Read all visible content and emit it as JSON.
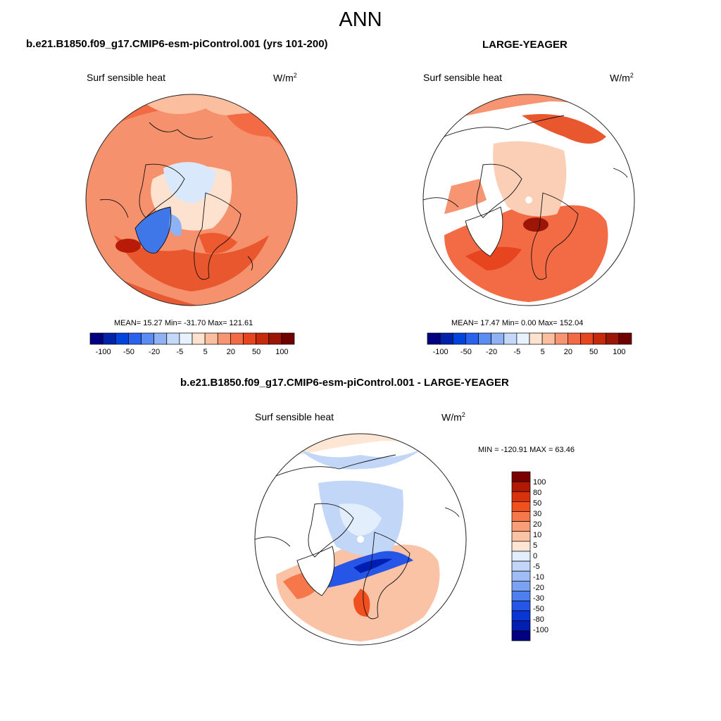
{
  "figure": {
    "title": "ANN",
    "panel1": {
      "case_title": "b.e21.B1850.f09_g17.CMIP6-esm-piControl.001 (yrs 101-200)",
      "variable": "Surf sensible heat",
      "units": "W/m",
      "units_sup": "2",
      "stats": "MEAN=  15.27  Min= -31.70  Max= 121.61"
    },
    "panel2": {
      "case_title": "LARGE-YEAGER",
      "variable": "Surf sensible heat",
      "units": "W/m",
      "units_sup": "2",
      "stats": "MEAN=  17.47  Min=   0.00  Max= 152.04"
    },
    "panel3": {
      "case_title": "b.e21.B1850.f09_g17.CMIP6-esm-piControl.001 - LARGE-YEAGER",
      "variable": "Surf sensible heat",
      "units": "W/m",
      "units_sup": "2",
      "stats": "MIN = -120.91 MAX =  63.46"
    },
    "horizontal_colorbar": {
      "colors": [
        "#000080",
        "#0022aa",
        "#0044dd",
        "#2a62ee",
        "#5a8cf2",
        "#8fb2f5",
        "#c4d8fa",
        "#e8f1fe",
        "#fde3cf",
        "#fbbfa0",
        "#f79573",
        "#f26b45",
        "#e74520",
        "#c52a0c",
        "#9b1607",
        "#700000"
      ],
      "labels": [
        "-100",
        "-50",
        "-20",
        "-5",
        "5",
        "20",
        "50",
        "100"
      ]
    },
    "vertical_colorbar": {
      "colors": [
        "#7a0000",
        "#b01a05",
        "#d8320c",
        "#f04f1e",
        "#f5774a",
        "#f89e78",
        "#fbc3a6",
        "#fde6d4",
        "#e3eefc",
        "#c2d6f8",
        "#9fbcf4",
        "#7ba2f0",
        "#4d7fee",
        "#2656e8",
        "#0a36d6",
        "#001fb0",
        "#000080"
      ],
      "labels": [
        "100",
        "80",
        "50",
        "30",
        "20",
        "10",
        "5",
        "0",
        "-5",
        "-10",
        "-20",
        "-30",
        "-50",
        "-80",
        "-100"
      ]
    }
  }
}
